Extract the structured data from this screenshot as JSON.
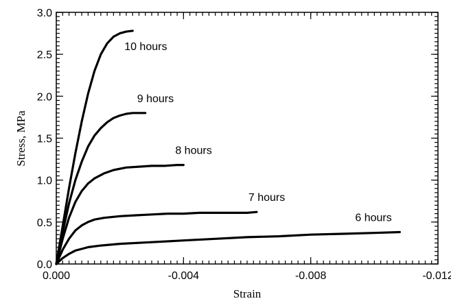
{
  "chart_data": {
    "type": "line",
    "title": "",
    "xlabel": "Strain",
    "ylabel": "Stress, MPa",
    "xlim": [
      0.0,
      -0.012
    ],
    "ylim": [
      0.0,
      3.0
    ],
    "x_ticks": [
      0.0,
      -0.004,
      -0.008,
      -0.012
    ],
    "x_tick_labels": [
      "0.000",
      "-0.004",
      "-0.008",
      "-0.012"
    ],
    "y_ticks": [
      0.0,
      0.5,
      1.0,
      1.5,
      2.0,
      2.5,
      3.0
    ],
    "y_tick_labels": [
      "0.0",
      "0.5",
      "1.0",
      "1.5",
      "2.0",
      "2.5",
      "3.0"
    ],
    "grid": false,
    "legend": "none",
    "series": [
      {
        "name": "10 hours",
        "x": [
          0.0,
          -0.0002,
          -0.0004,
          -0.0006,
          -0.0008,
          -0.001,
          -0.0012,
          -0.0014,
          -0.0016,
          -0.0018,
          -0.002,
          -0.0022,
          -0.0024
        ],
        "y": [
          0.0,
          0.45,
          0.9,
          1.32,
          1.7,
          2.03,
          2.3,
          2.5,
          2.63,
          2.71,
          2.75,
          2.77,
          2.78
        ]
      },
      {
        "name": "9 hours",
        "x": [
          0.0,
          -0.0002,
          -0.0004,
          -0.0006,
          -0.0008,
          -0.001,
          -0.0012,
          -0.0014,
          -0.0016,
          -0.0018,
          -0.002,
          -0.0022,
          -0.0024,
          -0.0026,
          -0.0028
        ],
        "y": [
          0.0,
          0.38,
          0.72,
          1.0,
          1.22,
          1.4,
          1.53,
          1.62,
          1.69,
          1.74,
          1.77,
          1.79,
          1.8,
          1.8,
          1.8
        ]
      },
      {
        "name": "8 hours",
        "x": [
          0.0,
          -0.0002,
          -0.0004,
          -0.0006,
          -0.0008,
          -0.001,
          -0.0012,
          -0.0015,
          -0.0018,
          -0.0022,
          -0.0026,
          -0.003,
          -0.0034,
          -0.0038,
          -0.004
        ],
        "y": [
          0.0,
          0.3,
          0.55,
          0.74,
          0.87,
          0.96,
          1.02,
          1.08,
          1.12,
          1.15,
          1.16,
          1.17,
          1.17,
          1.18,
          1.18
        ]
      },
      {
        "name": "7 hours",
        "x": [
          0.0,
          -0.0002,
          -0.0004,
          -0.0006,
          -0.0008,
          -0.001,
          -0.0012,
          -0.0015,
          -0.002,
          -0.0025,
          -0.003,
          -0.0035,
          -0.004,
          -0.0045,
          -0.005,
          -0.0055,
          -0.006,
          -0.0063
        ],
        "y": [
          0.0,
          0.17,
          0.3,
          0.4,
          0.46,
          0.5,
          0.53,
          0.55,
          0.57,
          0.58,
          0.59,
          0.6,
          0.6,
          0.61,
          0.61,
          0.61,
          0.61,
          0.62
        ]
      },
      {
        "name": "6 hours",
        "x": [
          0.0,
          -0.0002,
          -0.0004,
          -0.0006,
          -0.0008,
          -0.001,
          -0.0014,
          -0.002,
          -0.003,
          -0.004,
          -0.005,
          -0.006,
          -0.007,
          -0.008,
          -0.009,
          -0.01,
          -0.0108
        ],
        "y": [
          0.0,
          0.07,
          0.12,
          0.16,
          0.18,
          0.2,
          0.22,
          0.24,
          0.26,
          0.28,
          0.3,
          0.32,
          0.33,
          0.35,
          0.36,
          0.37,
          0.38
        ]
      }
    ]
  }
}
